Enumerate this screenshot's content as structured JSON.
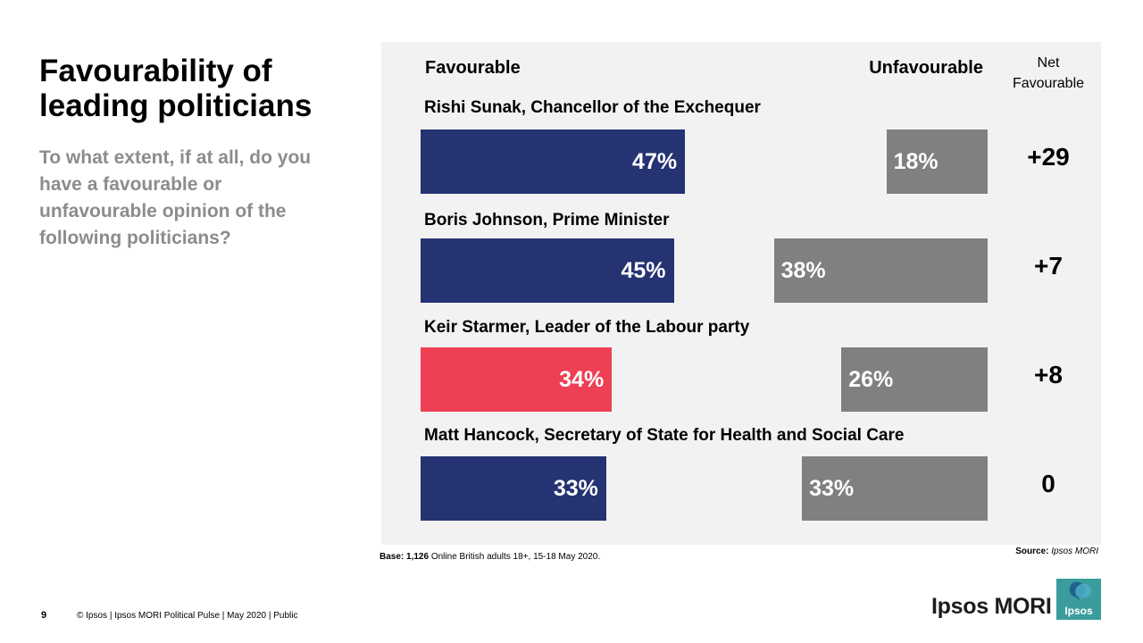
{
  "slide": {
    "title": "Favourability of leading politicians",
    "subtitle": "To what extent, if at all, do you have a favourable or unfavourable opinion of the following politicians?"
  },
  "chart_data": {
    "type": "bar",
    "headers": {
      "favourable": "Favourable",
      "unfavourable": "Unfavourable",
      "net_line1": "Net",
      "net_line2": "Favourable"
    },
    "categories": [
      "Rishi Sunak, Chancellor of the Exchequer",
      "Boris Johnson, Prime Minister",
      "Keir Starmer, Leader of the Labour party",
      "Matt Hancock, Secretary of State for Health and Social Care"
    ],
    "series": [
      {
        "name": "Favourable",
        "values": [
          47,
          45,
          34,
          33
        ],
        "labels": [
          "47%",
          "45%",
          "34%",
          "33%"
        ]
      },
      {
        "name": "Unfavourable",
        "values": [
          18,
          38,
          26,
          33
        ],
        "labels": [
          "18%",
          "38%",
          "26%",
          "33%"
        ]
      }
    ],
    "net_favourable": [
      "+29",
      "+7",
      "+8",
      "0"
    ],
    "bar_colors": {
      "favourable_default": "#253373",
      "favourable_highlight": "#ee3f55",
      "unfavourable": "#808080"
    },
    "highlight_index": 2,
    "unit": "%"
  },
  "notes": {
    "base_label": "Base:",
    "base_value": "1,126",
    "base_text": "Online British adults 18+, 15-18 May 2020.",
    "source_label": "Source:",
    "source_value": "Ipsos MORI"
  },
  "footer": {
    "page_number": "9",
    "text": "© Ipsos | Ipsos MORI Political Pulse | May 2020 | Public"
  },
  "branding": {
    "wordmark": "Ipsos MORI",
    "badge_text": "Ipsos",
    "badge_color": "#3a9c9c"
  }
}
